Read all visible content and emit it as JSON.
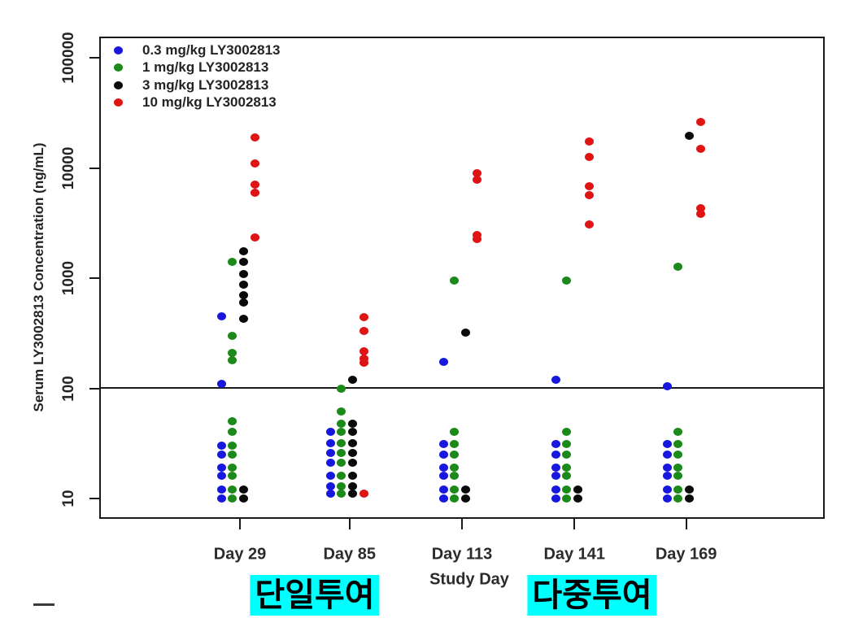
{
  "chart_data": {
    "type": "scatter",
    "title": "",
    "xlabel": "Study Day",
    "ylabel": "Serum LY3002813 Concentration (ng/mL)",
    "y_scale": "log10",
    "ylim": [
      10,
      100000
    ],
    "y_tick_labels": [
      "100000",
      "10000",
      "1000",
      "100",
      "10"
    ],
    "y_tick_values": [
      100000,
      10000,
      1000,
      100,
      10
    ],
    "categories": [
      "Day 29",
      "Day 85",
      "Day 113",
      "Day 141",
      "Day 169"
    ],
    "reference_line_y": 100,
    "grid": false,
    "legend_position": "top-left-inside",
    "series": [
      {
        "name": "0.3 mg/kg LY3002813",
        "color": "#1717dd",
        "points": [
          [
            0,
            450
          ],
          [
            0,
            110
          ],
          [
            0,
            30
          ],
          [
            0,
            25
          ],
          [
            0,
            19
          ],
          [
            0,
            16
          ],
          [
            0,
            12
          ],
          [
            0,
            10
          ],
          [
            1,
            40
          ],
          [
            1,
            32
          ],
          [
            1,
            26
          ],
          [
            1,
            21
          ],
          [
            1,
            16
          ],
          [
            1,
            13
          ],
          [
            1,
            11
          ],
          [
            2,
            175
          ],
          [
            2,
            31
          ],
          [
            2,
            25
          ],
          [
            2,
            19
          ],
          [
            2,
            16
          ],
          [
            2,
            12
          ],
          [
            2,
            10
          ],
          [
            3,
            120
          ],
          [
            3,
            31
          ],
          [
            3,
            25
          ],
          [
            3,
            19
          ],
          [
            3,
            16
          ],
          [
            3,
            12
          ],
          [
            3,
            10
          ],
          [
            4,
            105
          ],
          [
            4,
            31
          ],
          [
            4,
            25
          ],
          [
            4,
            19
          ],
          [
            4,
            16
          ],
          [
            4,
            12
          ],
          [
            4,
            10
          ]
        ]
      },
      {
        "name": "1 mg/kg LY3002813",
        "color": "#1b8a1b",
        "points": [
          [
            0,
            1400
          ],
          [
            0,
            300
          ],
          [
            0,
            210
          ],
          [
            0,
            180
          ],
          [
            0,
            50
          ],
          [
            0,
            40
          ],
          [
            0,
            30
          ],
          [
            0,
            25
          ],
          [
            0,
            19
          ],
          [
            0,
            16
          ],
          [
            0,
            12
          ],
          [
            0,
            10
          ],
          [
            1,
            100
          ],
          [
            1,
            62
          ],
          [
            1,
            48
          ],
          [
            1,
            40
          ],
          [
            1,
            32
          ],
          [
            1,
            26
          ],
          [
            1,
            21
          ],
          [
            1,
            16
          ],
          [
            1,
            13
          ],
          [
            1,
            11
          ],
          [
            2,
            950
          ],
          [
            2,
            40
          ],
          [
            2,
            31
          ],
          [
            2,
            25
          ],
          [
            2,
            19
          ],
          [
            2,
            16
          ],
          [
            2,
            12
          ],
          [
            2,
            10
          ],
          [
            3,
            950
          ],
          [
            3,
            40
          ],
          [
            3,
            31
          ],
          [
            3,
            25
          ],
          [
            3,
            19
          ],
          [
            3,
            16
          ],
          [
            3,
            12
          ],
          [
            3,
            10
          ],
          [
            4,
            1270
          ],
          [
            4,
            40
          ],
          [
            4,
            31
          ],
          [
            4,
            25
          ],
          [
            4,
            19
          ],
          [
            4,
            16
          ],
          [
            4,
            12
          ],
          [
            4,
            10
          ]
        ]
      },
      {
        "name": "3 mg/kg LY3002813",
        "color": "#0a0a0a",
        "points": [
          [
            0,
            1750
          ],
          [
            0,
            1400
          ],
          [
            0,
            1090
          ],
          [
            0,
            870
          ],
          [
            0,
            700
          ],
          [
            0,
            600
          ],
          [
            0,
            430
          ],
          [
            0,
            12
          ],
          [
            0,
            10
          ],
          [
            1,
            120
          ],
          [
            1,
            48
          ],
          [
            1,
            40
          ],
          [
            1,
            32
          ],
          [
            1,
            26
          ],
          [
            1,
            21
          ],
          [
            1,
            16
          ],
          [
            1,
            13
          ],
          [
            1,
            11
          ],
          [
            2,
            320
          ],
          [
            2,
            12
          ],
          [
            2,
            10
          ],
          [
            3,
            12
          ],
          [
            3,
            10
          ],
          [
            4,
            19500
          ],
          [
            4,
            12
          ],
          [
            4,
            10
          ]
        ]
      },
      {
        "name": "10 mg/kg LY3002813",
        "color": "#df1414",
        "points": [
          [
            0,
            19000
          ],
          [
            0,
            11000
          ],
          [
            0,
            7000
          ],
          [
            0,
            6000
          ],
          [
            0,
            2350
          ],
          [
            1,
            440
          ],
          [
            1,
            330
          ],
          [
            1,
            215
          ],
          [
            1,
            185
          ],
          [
            1,
            170
          ],
          [
            1,
            11
          ],
          [
            2,
            9000
          ],
          [
            2,
            7800
          ],
          [
            2,
            2450
          ],
          [
            2,
            2250
          ],
          [
            3,
            17500
          ],
          [
            3,
            12500
          ],
          [
            3,
            6800
          ],
          [
            3,
            5700
          ],
          [
            3,
            3050
          ],
          [
            4,
            26000
          ],
          [
            4,
            15000
          ],
          [
            4,
            4300
          ],
          [
            4,
            3800
          ]
        ]
      }
    ],
    "annotations": [
      {
        "text": "단일투여",
        "highlight_color": "#00ffff"
      },
      {
        "text": "다중투여",
        "highlight_color": "#00ffff"
      }
    ]
  }
}
